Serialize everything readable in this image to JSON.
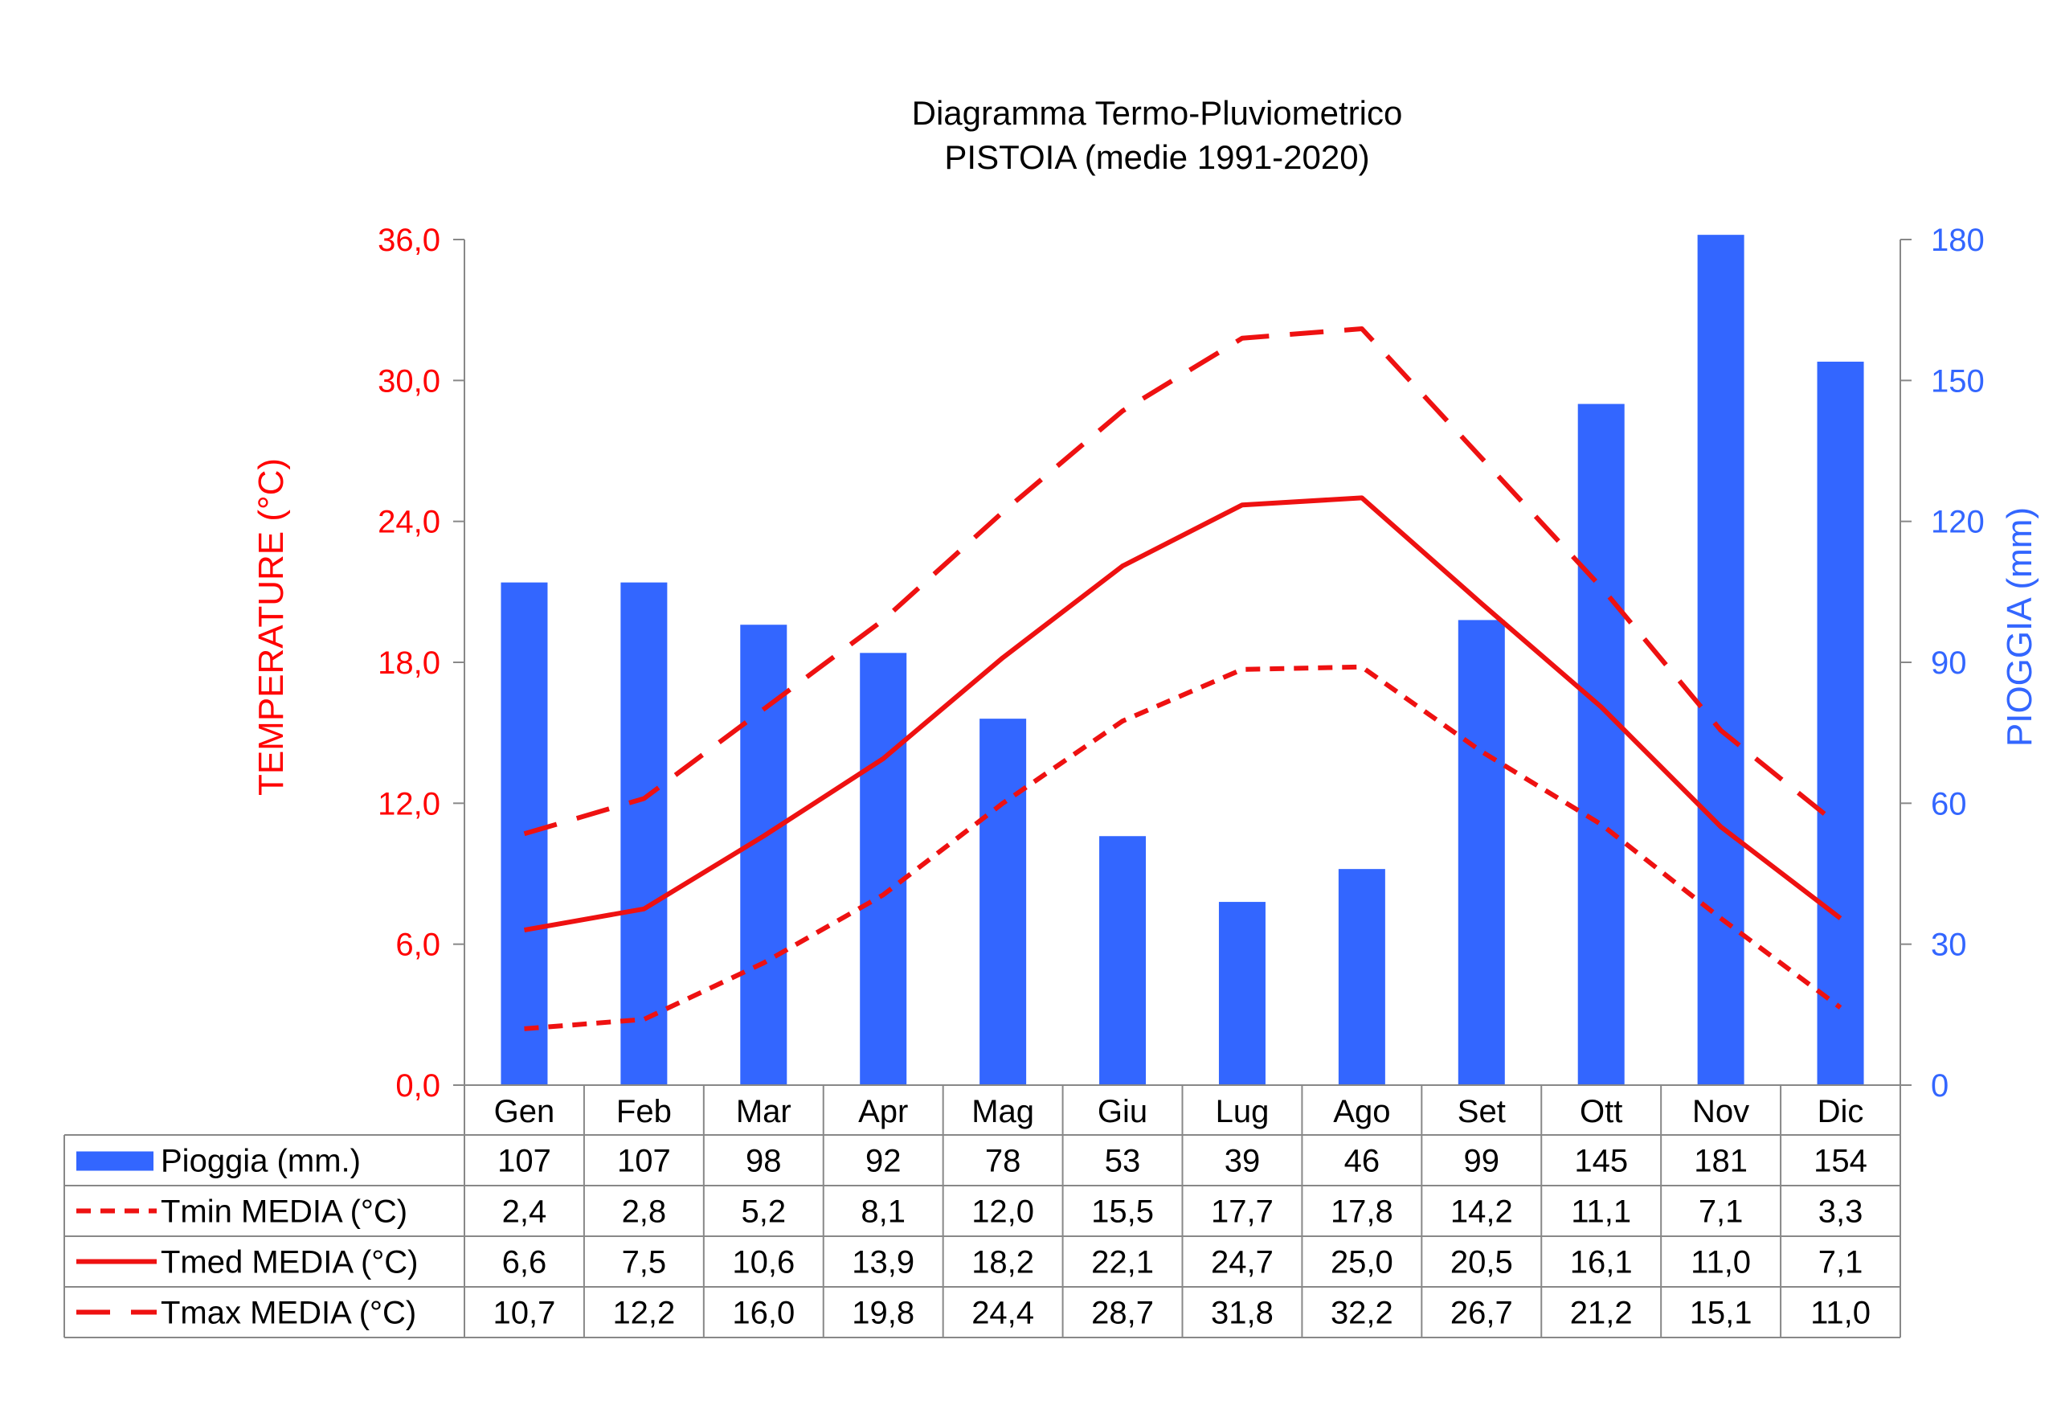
{
  "chart_data": {
    "type": "bar+line",
    "title": "Diagramma Termo-Pluviometrico",
    "subtitle": "PISTOIA (medie 1991-2020)",
    "categories": [
      "Gen",
      "Feb",
      "Mar",
      "Apr",
      "Mag",
      "Giu",
      "Lug",
      "Ago",
      "Set",
      "Ott",
      "Nov",
      "Dic"
    ],
    "y_left": {
      "label": "TEMPERATURE (°C)",
      "range": [
        0,
        36
      ],
      "ticks": [
        "0,0",
        "6,0",
        "12,0",
        "18,0",
        "24,0",
        "30,0",
        "36,0"
      ],
      "color": "#ff0000"
    },
    "y_right": {
      "label": "PIOGGIA (mm)",
      "range": [
        0,
        180
      ],
      "ticks": [
        "0",
        "30",
        "60",
        "90",
        "120",
        "150",
        "180"
      ],
      "color": "#3366ff"
    },
    "grid": false,
    "series": [
      {
        "name": "Pioggia (mm.)",
        "kind": "bar",
        "axis": "right",
        "color": "#3366ff",
        "values": [
          107,
          107,
          98,
          92,
          78,
          53,
          39,
          46,
          99,
          145,
          181,
          154
        ],
        "labels": [
          "107",
          "107",
          "98",
          "92",
          "78",
          "53",
          "39",
          "46",
          "99",
          "145",
          "181",
          "154"
        ]
      },
      {
        "name": "Tmin MEDIA (°C)",
        "kind": "line",
        "style": "dotted",
        "axis": "left",
        "color": "#ee1111",
        "values": [
          2.4,
          2.8,
          5.2,
          8.1,
          12.0,
          15.5,
          17.7,
          17.8,
          14.2,
          11.1,
          7.1,
          3.3
        ],
        "labels": [
          "2,4",
          "2,8",
          "5,2",
          "8,1",
          "12,0",
          "15,5",
          "17,7",
          "17,8",
          "14,2",
          "11,1",
          "7,1",
          "3,3"
        ]
      },
      {
        "name": "Tmed MEDIA (°C)",
        "kind": "line",
        "style": "solid",
        "axis": "left",
        "color": "#ee1111",
        "values": [
          6.6,
          7.5,
          10.6,
          13.9,
          18.2,
          22.1,
          24.7,
          25.0,
          20.5,
          16.1,
          11.0,
          7.1
        ],
        "labels": [
          "6,6",
          "7,5",
          "10,6",
          "13,9",
          "18,2",
          "22,1",
          "24,7",
          "25,0",
          "20,5",
          "16,1",
          "11,0",
          "7,1"
        ]
      },
      {
        "name": "Tmax MEDIA (°C)",
        "kind": "line",
        "style": "dashed",
        "axis": "left",
        "color": "#ee1111",
        "values": [
          10.7,
          12.2,
          16.0,
          19.8,
          24.4,
          28.7,
          31.8,
          32.2,
          26.7,
          21.2,
          15.1,
          11.0
        ],
        "labels": [
          "10,7",
          "12,2",
          "16,0",
          "19,8",
          "24,4",
          "28,7",
          "31,8",
          "32,2",
          "26,7",
          "21,2",
          "15,1",
          "11,0"
        ]
      }
    ]
  }
}
